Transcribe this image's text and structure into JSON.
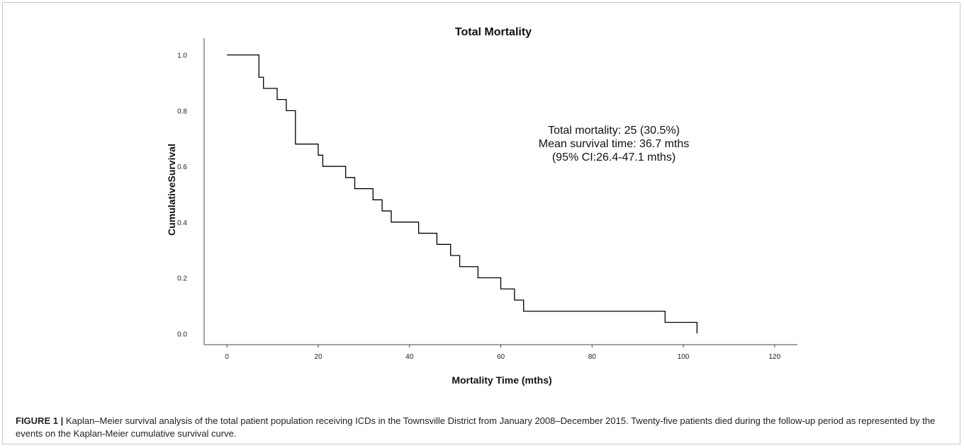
{
  "figure": {
    "label": "FIGURE 1 |",
    "caption": " Kaplan–Meier survival analysis of the total patient population receiving ICDs in the Townsville District from January 2008–December 2015. Twenty-five patients died during the follow-up period as represented by the events on the Kaplan-Meier cumulative survival curve."
  },
  "chart_data": {
    "type": "line",
    "title": "Total Mortality",
    "xlabel": "Mortality Time (mths)",
    "ylabel": "CumulativeSurvival",
    "xlim": [
      -5,
      125
    ],
    "ylim": [
      -0.04,
      1.06
    ],
    "xticks": [
      0,
      20,
      40,
      60,
      80,
      100,
      120
    ],
    "yticks": [
      "0.0",
      "0.2",
      "0.4",
      "0.6",
      "0.8",
      "1.0"
    ],
    "grid": false,
    "annotations": [
      "Total mortality: 25 (30.5%)",
      "Mean survival time: 36.7 mths",
      "(95% CI:26.4-47.1 mths)"
    ],
    "series": [
      {
        "step": true,
        "color": "#000000",
        "x": [
          0,
          7,
          8,
          11,
          13,
          15,
          20,
          21,
          26,
          28,
          32,
          34,
          36,
          42,
          46,
          49,
          51,
          55,
          60,
          63,
          65,
          96,
          103,
          103
        ],
        "y": [
          1.0,
          0.92,
          0.88,
          0.84,
          0.8,
          0.68,
          0.64,
          0.6,
          0.56,
          0.52,
          0.48,
          0.44,
          0.4,
          0.36,
          0.32,
          0.28,
          0.24,
          0.2,
          0.16,
          0.12,
          0.08,
          0.04,
          0.04,
          0.0
        ]
      }
    ]
  }
}
